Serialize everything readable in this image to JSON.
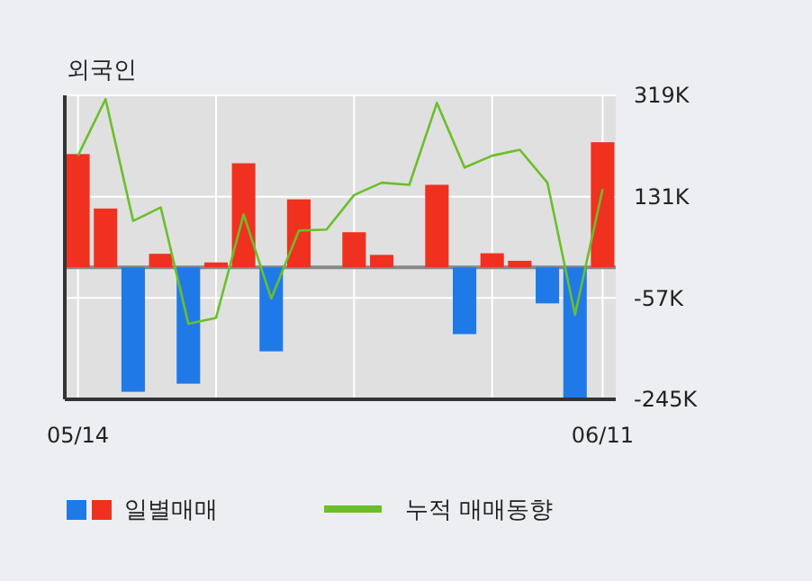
{
  "chart_data": {
    "type": "bar",
    "title": "외국인",
    "categories": [
      "05/14",
      null,
      null,
      null,
      null,
      null,
      null,
      null,
      null,
      null,
      null,
      null,
      null,
      null,
      null,
      null,
      null,
      null,
      null,
      "06/11"
    ],
    "series": [
      {
        "name": "일별매매",
        "colors": [
          "#f0311f",
          "#f0311f",
          "#1f7ae8",
          "#f0311f",
          "#1f7ae8",
          "#f0311f",
          "#f0311f",
          "#1f7ae8",
          "#f0311f",
          "#f0311f",
          "#f0311f",
          "#f0311f",
          "#f0311f",
          "#f0311f",
          "#1f7ae8",
          "#f0311f",
          "#f0311f",
          "#1f7ae8",
          "#1f7ae8",
          "#f0311f"
        ],
        "values": [
          210,
          109,
          -231,
          25,
          -216,
          9,
          193,
          -156,
          126,
          0,
          65,
          23,
          0,
          153,
          -124,
          26,
          12,
          -67,
          -244,
          232
        ]
      },
      {
        "name": "누적 매매동향",
        "type": "line",
        "color": "#6abf2a",
        "values": [
          207,
          312,
          86,
          111,
          -105,
          -94,
          98,
          -58,
          68,
          70,
          134,
          157,
          153,
          305,
          185,
          207,
          218,
          157,
          -88,
          145
        ]
      }
    ],
    "ylim": [
      -245,
      319
    ],
    "yticks": [
      {
        "value": 319,
        "label": "319K"
      },
      {
        "value": 131,
        "label": "131K"
      },
      {
        "value": -57,
        "label": "-57K"
      },
      {
        "value": -245,
        "label": "-245K"
      }
    ],
    "grid": true,
    "legend": "bottom"
  }
}
